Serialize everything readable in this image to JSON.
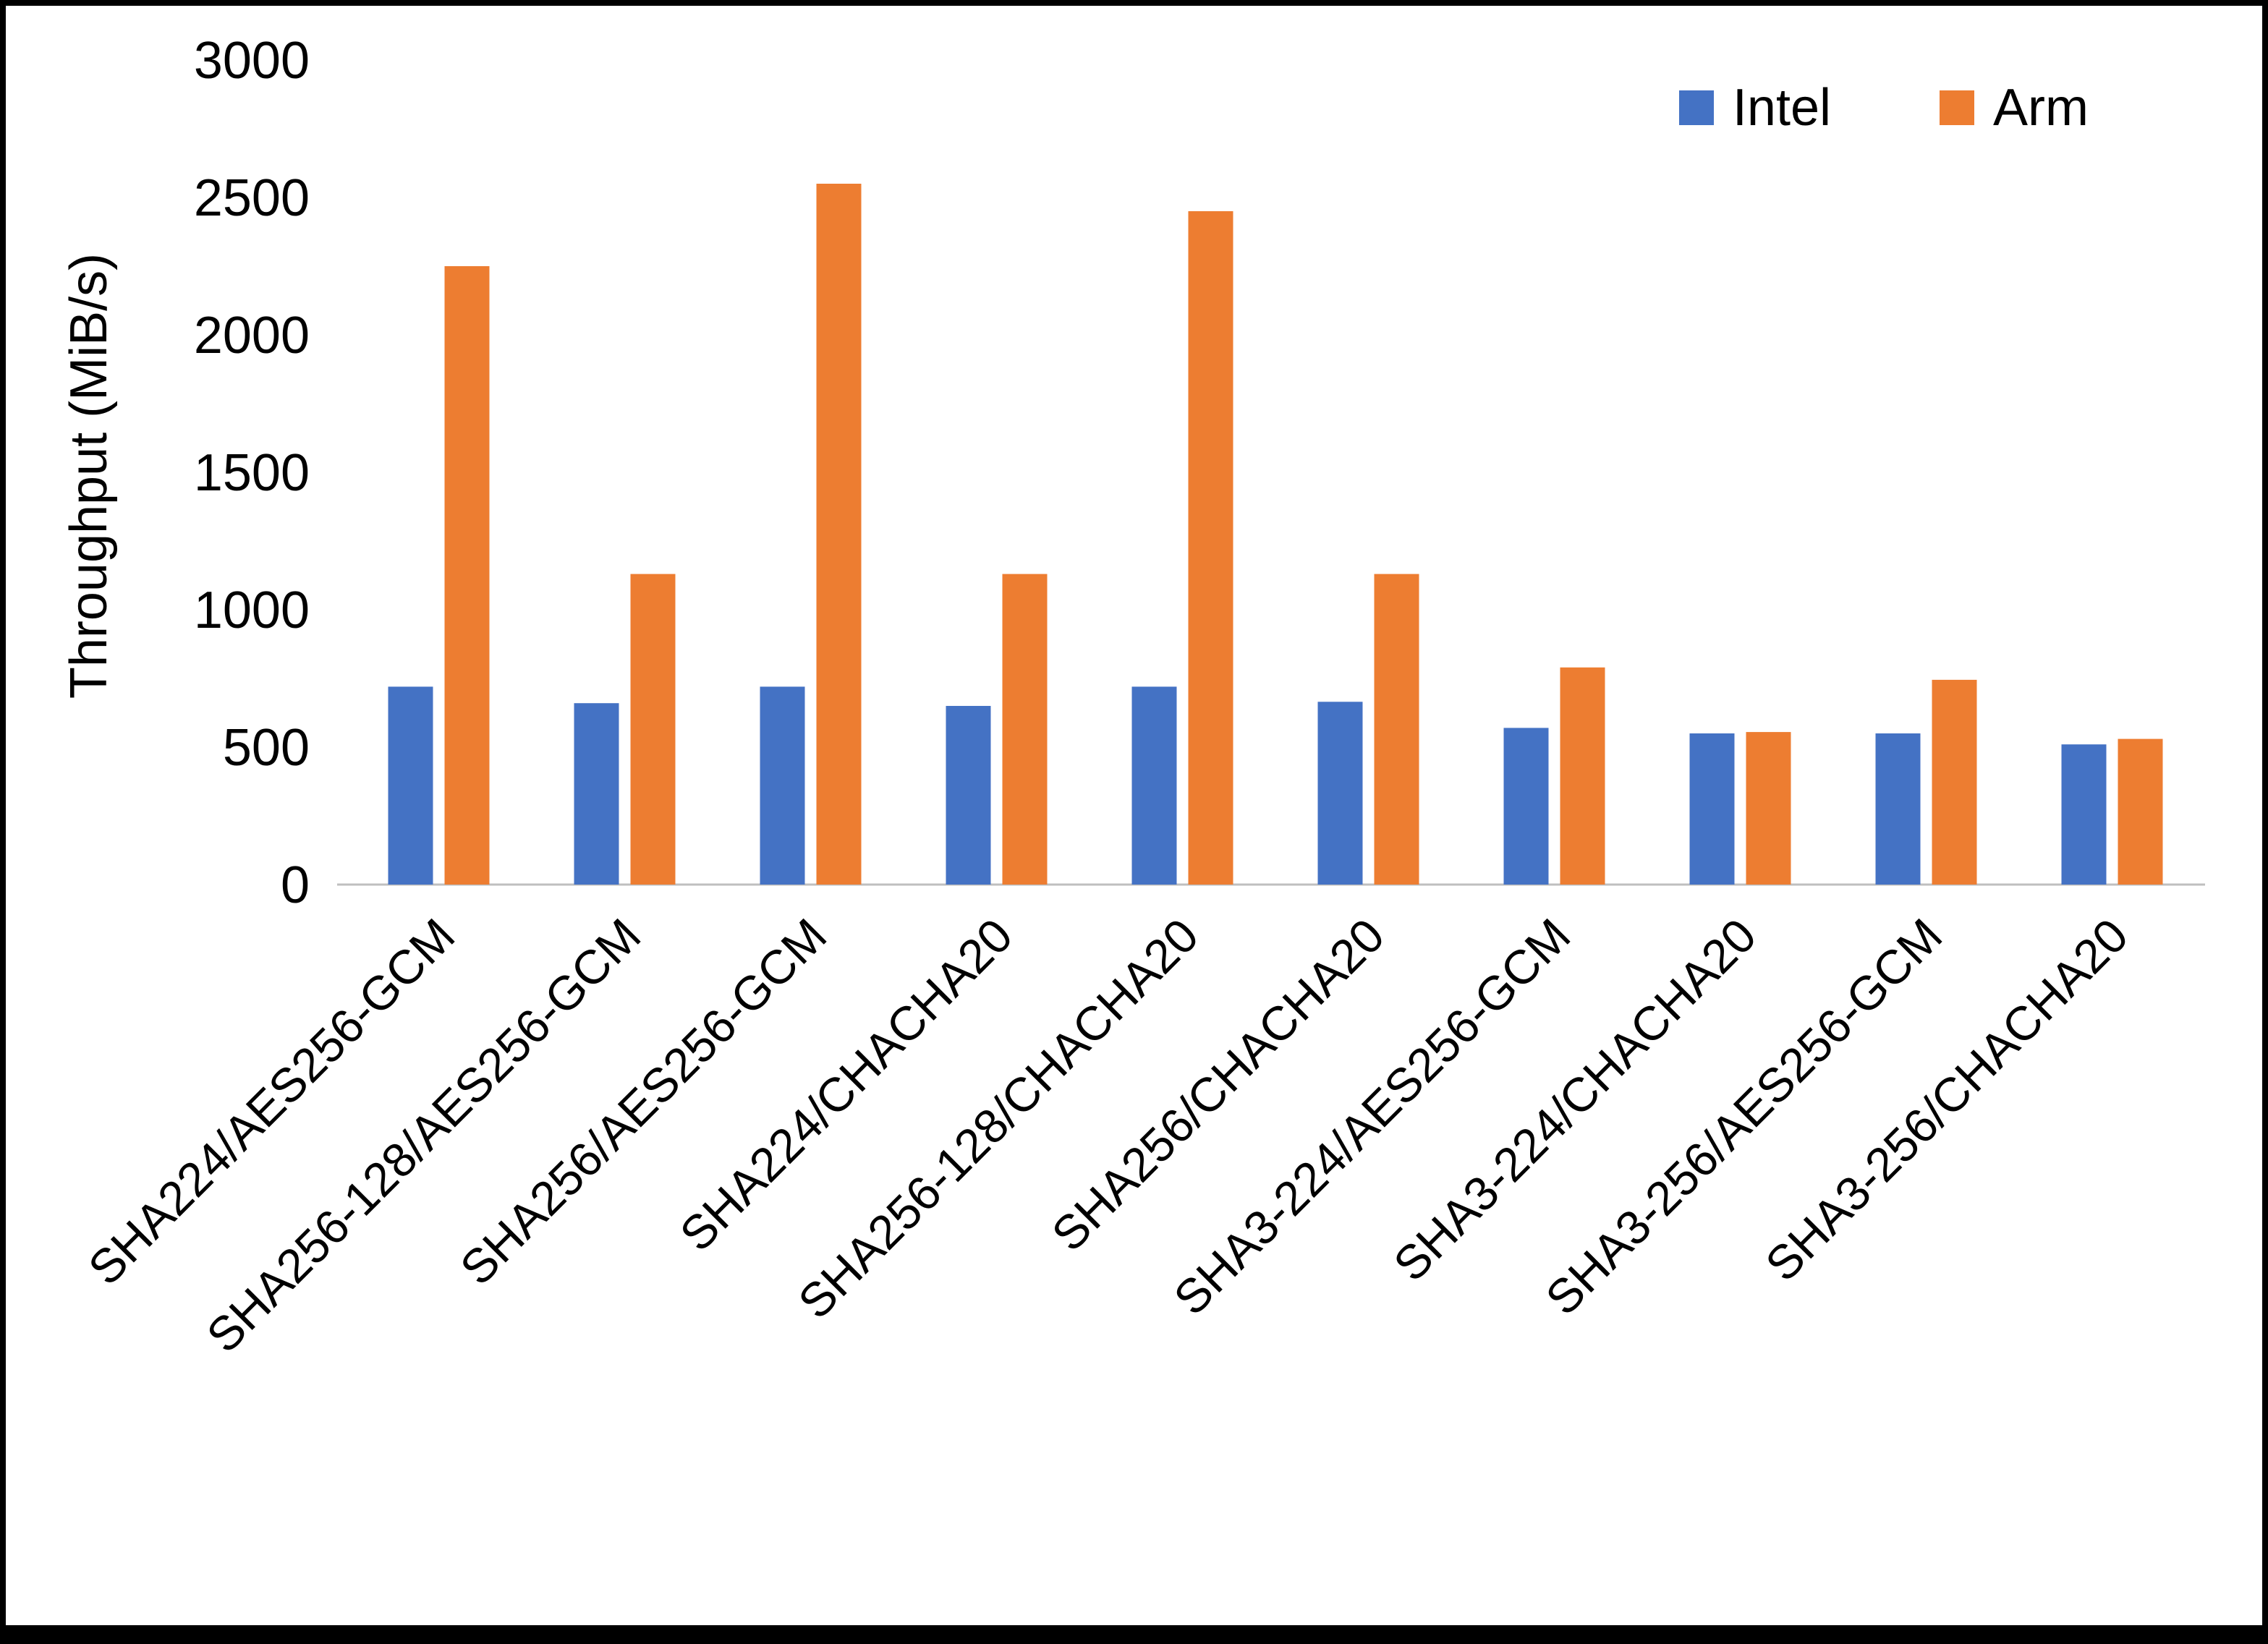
{
  "chart_data": {
    "type": "bar",
    "title": "",
    "xlabel": "",
    "ylabel": "Throughput (MiB/s)",
    "ylim": [
      0,
      3000
    ],
    "yticks": [
      0,
      500,
      1000,
      1500,
      2000,
      2500,
      3000
    ],
    "grid": false,
    "legend_position": "top-right",
    "categories": [
      "SHA224/AES256-GCM",
      "SHA256-128/AES256-GCM",
      "SHA256/AES256-GCM",
      "SHA224/CHACHA20",
      "SHA256-128/CHACHA20",
      "SHA256/CHACHA20",
      "SHA3-224/AES256-GCM",
      "SHA3-224/CHACHA20",
      "SHA3-256/AES256-GCM",
      "SHA3-256/CHACHA20"
    ],
    "series": [
      {
        "name": "Intel",
        "color": "#4472C4",
        "values": [
          720,
          660,
          720,
          650,
          720,
          665,
          570,
          550,
          550,
          510
        ]
      },
      {
        "name": "Arm",
        "color": "#ED7D31",
        "values": [
          2250,
          1130,
          2550,
          1130,
          2450,
          1130,
          790,
          555,
          745,
          530
        ]
      }
    ]
  }
}
